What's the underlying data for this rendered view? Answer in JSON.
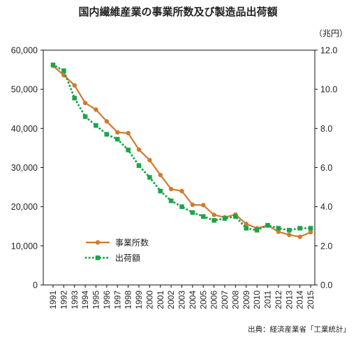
{
  "chart_data": {
    "type": "line",
    "title": "国内繊維産業の事業所数及び製造品出荷額",
    "right_axis_unit": "（兆円）",
    "source": "出典：経済産業省「工業統計」",
    "x": [
      "1991",
      "1992",
      "1993",
      "1994",
      "1995",
      "1996",
      "1997",
      "1998",
      "1999",
      "2000",
      "2001",
      "2002",
      "2003",
      "2004",
      "2005",
      "2006",
      "2007",
      "2008",
      "2009",
      "2010",
      "2011",
      "2012",
      "2013",
      "2014",
      "2015"
    ],
    "left_axis": {
      "ylim": [
        0,
        60000
      ],
      "ticks": [
        0,
        10000,
        20000,
        30000,
        40000,
        50000,
        60000
      ],
      "tick_labels": [
        "0",
        "10,000",
        "20,000",
        "30,000",
        "40,000",
        "50,000",
        "60,000"
      ]
    },
    "right_axis": {
      "ylim": [
        0,
        12
      ],
      "ticks": [
        0,
        2,
        4,
        6,
        8,
        10,
        12
      ],
      "tick_labels": [
        "0.0",
        "2.0",
        "4.0",
        "6.0",
        "8.0",
        "10.0",
        "12.0"
      ]
    },
    "grid": false,
    "legend_position": "bottom-left",
    "series": [
      {
        "name": "事業所数",
        "axis": "left",
        "color": "#d07a2e",
        "line_style": "solid",
        "marker": "circle",
        "values": [
          56000,
          53600,
          51000,
          46500,
          44800,
          41800,
          39000,
          38800,
          34600,
          31900,
          28100,
          24500,
          24000,
          20500,
          20400,
          17900,
          17300,
          18000,
          15600,
          14500,
          15200,
          13600,
          12800,
          12300,
          13500
        ]
      },
      {
        "name": "出荷額",
        "axis": "right",
        "color": "#1aa54a",
        "line_style": "dotted",
        "marker": "square",
        "values": [
          11.25,
          10.95,
          9.55,
          8.6,
          8.15,
          7.7,
          7.45,
          6.9,
          6.1,
          5.5,
          4.8,
          4.3,
          4.0,
          3.7,
          3.5,
          3.3,
          3.4,
          3.5,
          2.9,
          2.8,
          3.05,
          2.9,
          2.8,
          2.9,
          2.9
        ]
      }
    ]
  }
}
